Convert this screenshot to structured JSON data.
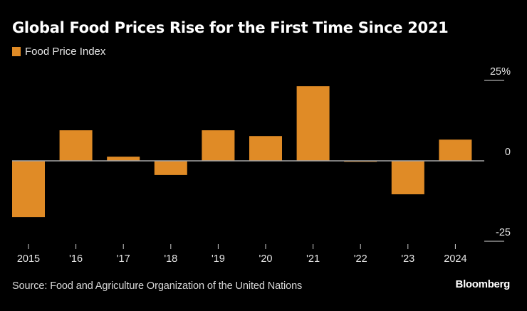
{
  "chart_data": {
    "type": "bar",
    "title": "Global Food Prices Rise for the First Time Since 2021",
    "legend": [
      {
        "name": "Food Price Index",
        "color": "#e08b26"
      }
    ],
    "legend_placement": "top-left",
    "categories": [
      "2015",
      "'16",
      "'17",
      "'18",
      "'19",
      "'20",
      "'21",
      "'22",
      "'23",
      "2024"
    ],
    "series": [
      {
        "name": "Food Price Index",
        "values": [
          -17.5,
          9.5,
          1.3,
          -4.4,
          9.5,
          7.7,
          23.2,
          -0.3,
          -10.4,
          6.6
        ]
      }
    ],
    "xlabel": "",
    "ylabel": "",
    "ylim": [
      -25,
      25
    ],
    "yticks": [
      {
        "value": 25,
        "label": "25%"
      },
      {
        "value": 0,
        "label": "0"
      },
      {
        "value": -25,
        "label": "-25"
      }
    ],
    "grid": false,
    "y_axis_side": "right"
  },
  "footer": {
    "source": "Source: Food and Agriculture Organization of the United Nations",
    "brand": "Bloomberg"
  },
  "colors": {
    "bar": "#e08b26",
    "background": "#000000",
    "zero_line": "#a6a6a6",
    "text": "#e6e6e6"
  }
}
